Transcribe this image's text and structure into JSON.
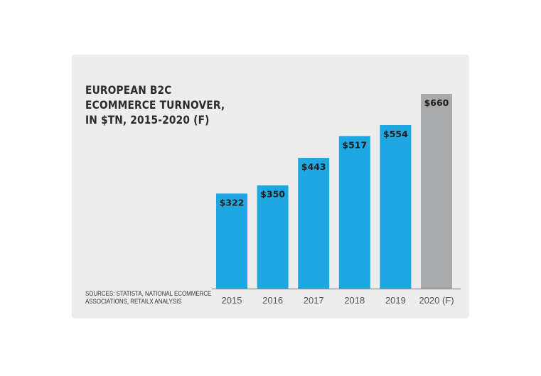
{
  "chart_data": {
    "type": "bar",
    "title_lines": [
      "EUROPEAN B2C",
      "ECOMMERCE TURNOVER,",
      "IN $TN, 2015-2020 (F)"
    ],
    "categories": [
      "2015",
      "2016",
      "2017",
      "2018",
      "2019",
      "2020 (F)"
    ],
    "values": [
      322,
      350,
      443,
      517,
      554,
      660
    ],
    "value_labels": [
      "$322",
      "$350",
      "$443",
      "$517",
      "$554",
      "$660"
    ],
    "forecast": [
      false,
      false,
      false,
      false,
      false,
      true
    ],
    "ylim": [
      0,
      660
    ],
    "grid": false,
    "colors": {
      "actual": "#1ea7e1",
      "forecast": "#a9aaac",
      "label": "#1e1e1e",
      "axis": "#8f8f8f",
      "tick_label": "#555555"
    }
  },
  "source_lines": [
    "SOURCES: STATISTA, NATIONAL ECOMMERCE",
    "ASSOCIATIONS, RETAILX ANALYSIS"
  ]
}
